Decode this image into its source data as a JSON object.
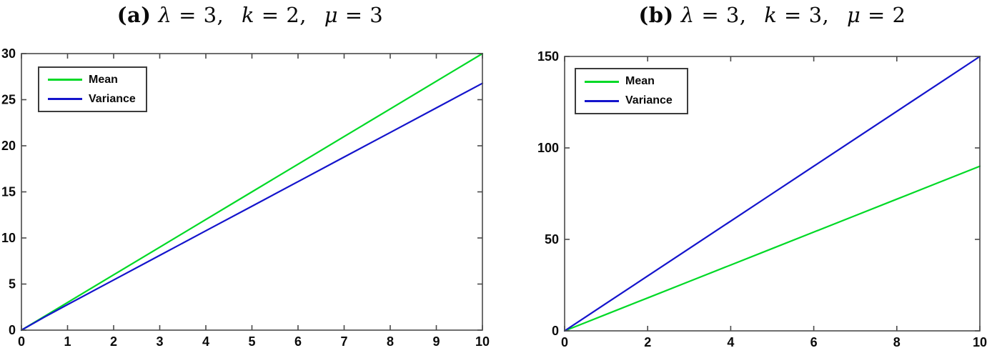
{
  "figure": {
    "background": "#ffffff",
    "axis_color": "#4a4a4a",
    "tick_label_color": "#0a0a0a"
  },
  "chart_data": [
    {
      "type": "line",
      "id": "a",
      "title": {
        "prefix": "(a)",
        "segments": [
          {
            "text": "λ",
            "italic": true
          },
          {
            "text": " = 3,  ",
            "italic": false
          },
          {
            "text": "k",
            "italic": true
          },
          {
            "text": " = 2,  ",
            "italic": false
          },
          {
            "text": "μ",
            "italic": true
          },
          {
            "text": " = 3",
            "italic": false
          }
        ],
        "plain_text": "(a) λ = 3, k = 2, μ = 3"
      },
      "xlabel": "",
      "ylabel": "",
      "xlim": [
        0,
        10
      ],
      "ylim": [
        0,
        30
      ],
      "xticks": [
        0,
        1,
        2,
        3,
        4,
        5,
        6,
        7,
        8,
        9,
        10
      ],
      "yticks": [
        0,
        5,
        10,
        15,
        20,
        25,
        30
      ],
      "grid": false,
      "legend_position": "top-left",
      "x": [
        0,
        0.5,
        1,
        2,
        3,
        4,
        5,
        6,
        7,
        8,
        9,
        10
      ],
      "series": [
        {
          "name": "Mean",
          "color": "#00d926",
          "values": [
            0,
            1.5,
            3,
            6,
            9,
            12,
            15,
            18,
            21,
            24,
            27,
            30
          ]
        },
        {
          "name": "Variance",
          "color": "#1414cc",
          "values": [
            0,
            1.42,
            2.77,
            5.44,
            8.11,
            10.78,
            13.44,
            16.11,
            18.78,
            21.44,
            24.11,
            26.78
          ]
        }
      ]
    },
    {
      "type": "line",
      "id": "b",
      "title": {
        "prefix": "(b)",
        "segments": [
          {
            "text": "λ",
            "italic": true
          },
          {
            "text": " = 3,  ",
            "italic": false
          },
          {
            "text": "k",
            "italic": true
          },
          {
            "text": " = 3,  ",
            "italic": false
          },
          {
            "text": "μ",
            "italic": true
          },
          {
            "text": " = 2",
            "italic": false
          }
        ],
        "plain_text": "(b) λ = 3, k = 3, μ = 2"
      },
      "xlabel": "",
      "ylabel": "",
      "xlim": [
        0,
        10
      ],
      "ylim": [
        0,
        150
      ],
      "xticks": [
        0,
        2,
        4,
        6,
        8,
        10
      ],
      "yticks": [
        0,
        50,
        100,
        150
      ],
      "grid": false,
      "legend_position": "top-left",
      "x": [
        0,
        0.5,
        1,
        2,
        3,
        4,
        5,
        6,
        7,
        8,
        9,
        10
      ],
      "series": [
        {
          "name": "Mean",
          "color": "#00d926",
          "values": [
            0,
            4.5,
            9,
            18,
            27,
            36,
            45,
            54,
            63,
            72,
            81,
            90
          ]
        },
        {
          "name": "Variance",
          "color": "#1414cc",
          "values": [
            0,
            7.5,
            15,
            30,
            45,
            60,
            75,
            90,
            105,
            120,
            135,
            150
          ]
        }
      ]
    }
  ]
}
